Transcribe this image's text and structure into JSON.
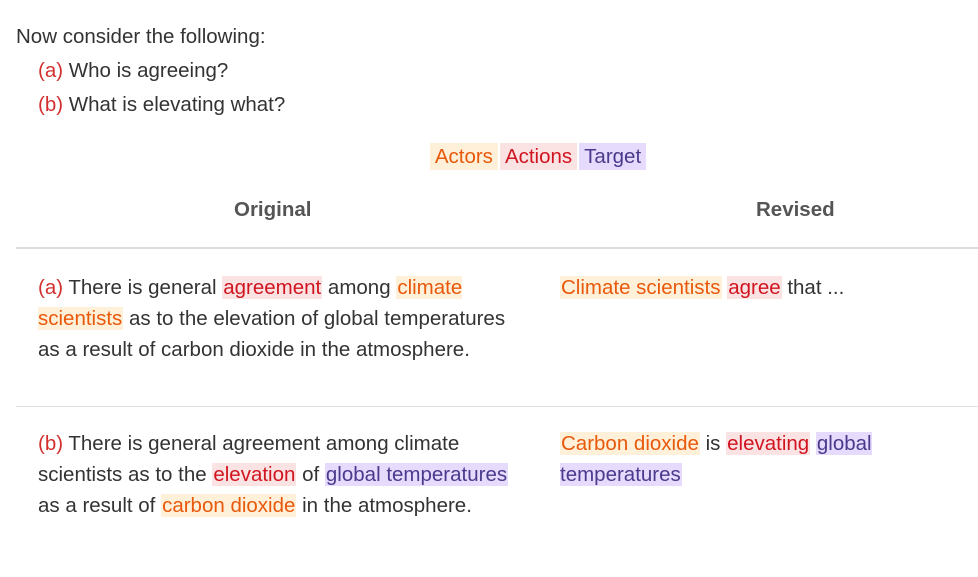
{
  "intro": {
    "prompt": "Now consider the following:",
    "questions": [
      {
        "label": "(a)",
        "text": "Who is agreeing?"
      },
      {
        "label": "(b)",
        "text": "What is elevating what?"
      }
    ]
  },
  "legend": {
    "actors": "Actors",
    "actions": "Actions",
    "target": "Target"
  },
  "headers": {
    "original": "Original",
    "revised": "Revised"
  },
  "colors": {
    "actor_bg": "#fff0d9",
    "actor_fg": "#e8590c",
    "action_bg": "#fbe3e4",
    "action_fg": "#d01520",
    "target_bg": "#e6dafd",
    "target_fg": "#4a3a8c",
    "label": "#d32f2f"
  },
  "rows": [
    {
      "label": "(a)",
      "original": {
        "t1": " There is general ",
        "action": "agreement",
        "t2": " among ",
        "actor": "climate scientists",
        "t3": " as to the elevation of global temperatures as a result of carbon dioxide in the atmosphere."
      },
      "revised": {
        "actor": "Climate scientists",
        "t1": " ",
        "action": "agree",
        "t2": " that ..."
      }
    },
    {
      "label": "(b)",
      "original": {
        "t1": " There is general agreement among climate scientists as to the ",
        "action": "elevation",
        "t2": " of ",
        "target": "global temperatures",
        "t3": " as a result of ",
        "actor": "carbon dioxide",
        "t4": " in the atmosphere."
      },
      "revised": {
        "actor": "Carbon dioxide",
        "t1": " is ",
        "action": "elevating",
        "t2": " ",
        "target": "global temperatures"
      }
    }
  ]
}
